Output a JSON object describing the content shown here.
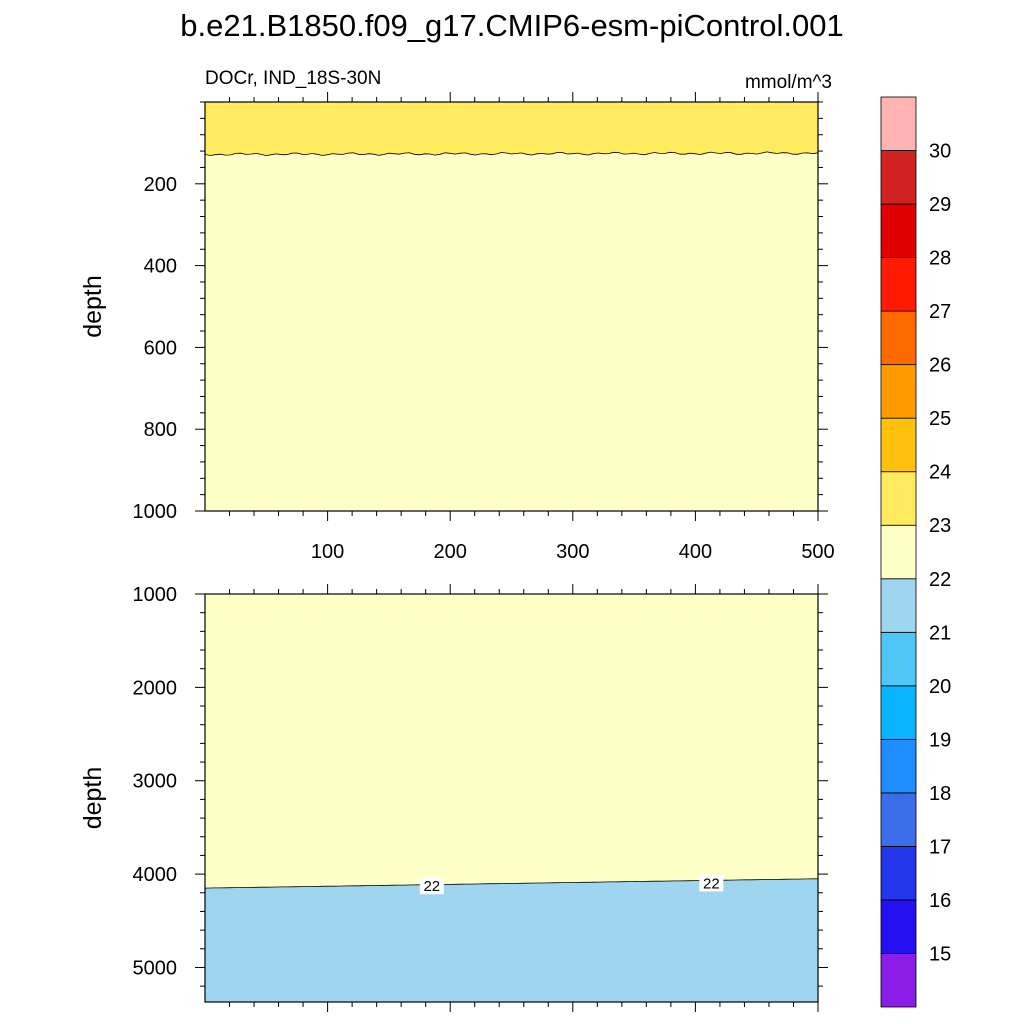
{
  "chart_data": {
    "title": "b.e21.B1850.f09_g17.CMIP6-esm-piControl.001",
    "type": "heatmap",
    "variable_region": "DOCr, IND_18S-30N",
    "units": "mmol/m^3",
    "x_ticks": [
      100,
      200,
      300,
      400,
      500
    ],
    "xlim": [
      0,
      500
    ],
    "colorbar": {
      "levels": [
        15,
        16,
        17,
        18,
        19,
        20,
        21,
        22,
        23,
        24,
        25,
        26,
        27,
        28,
        29,
        30
      ],
      "tick_labels": [
        "15",
        "16",
        "17",
        "18",
        "19",
        "20",
        "21",
        "22",
        "23",
        "24",
        "25",
        "26",
        "27",
        "28",
        "29",
        "30"
      ],
      "colors": [
        "#8a1de8",
        "#2510f2",
        "#2336e9",
        "#3b6de8",
        "#1f8cff",
        "#0bb4ff",
        "#4fc6f5",
        "#a0d5ef",
        "#ffffc8",
        "#ffeb5d",
        "#ffc30f",
        "#ff9b00",
        "#ff6a00",
        "#ff1a00",
        "#e00000",
        "#d02222",
        "#ffb3b3"
      ]
    },
    "panels": [
      {
        "ylabel": "depth",
        "ylim": [
          0,
          1000
        ],
        "y_ticks": [
          200,
          400,
          600,
          800,
          1000
        ],
        "y_reversed": true,
        "regions": [
          {
            "range": "23-24",
            "color": "#ffeb5d",
            "boundary_depth_start": 128,
            "boundary_depth_end": 125
          },
          {
            "range": "22-23",
            "color": "#ffffc8"
          }
        ]
      },
      {
        "ylabel": "depth",
        "ylim": [
          1000,
          5370
        ],
        "y_ticks": [
          1000,
          2000,
          3000,
          4000,
          5000
        ],
        "y_reversed": true,
        "regions": [
          {
            "range": "22-23",
            "color": "#ffffc8",
            "boundary_depth_start": 4150,
            "boundary_depth_end": 4050
          },
          {
            "range": "21-22",
            "color": "#a0d5ef"
          }
        ],
        "contour_labels": [
          {
            "text": "22",
            "x": 185,
            "depth": 4130
          },
          {
            "text": "22",
            "x": 413,
            "depth": 4100
          }
        ]
      }
    ]
  }
}
